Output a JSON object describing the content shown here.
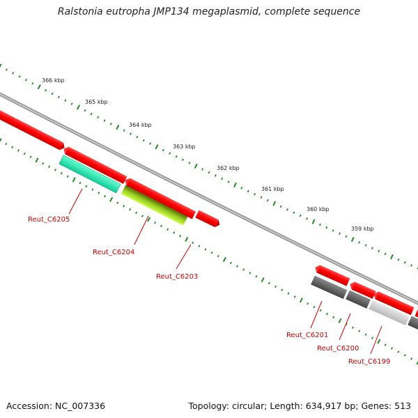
{
  "title": "Ralstonia eutropha JMP134 megaplasmid, complete sequence",
  "footer": {
    "accession": "Accession: NC_007336",
    "summary": "Topology: circular; Length: 634,917 bp; Genes: 513"
  },
  "ticks": [
    "366 kbp",
    "365 kbp",
    "364 kbp",
    "363 kbp",
    "362 kbp",
    "361 kbp",
    "360 kbp",
    "359 kbp"
  ],
  "genes": [
    {
      "label": "Reut_C6205",
      "color": "#33eeaa"
    },
    {
      "label": "Reut_C6204",
      "color": "#99dd22"
    },
    {
      "label": "Reut_C6203",
      "color": "#ff0000"
    },
    {
      "label": "Reut_C6201",
      "color": "#555555"
    },
    {
      "label": "Reut_C6200",
      "color": "#666666"
    },
    {
      "label": "Reut_C6199",
      "color": "#cccccc"
    }
  ],
  "colors": {
    "tick": "#228822",
    "backbone": "#888888",
    "forward_gene": "#ff0000",
    "label": "#cc0000"
  }
}
